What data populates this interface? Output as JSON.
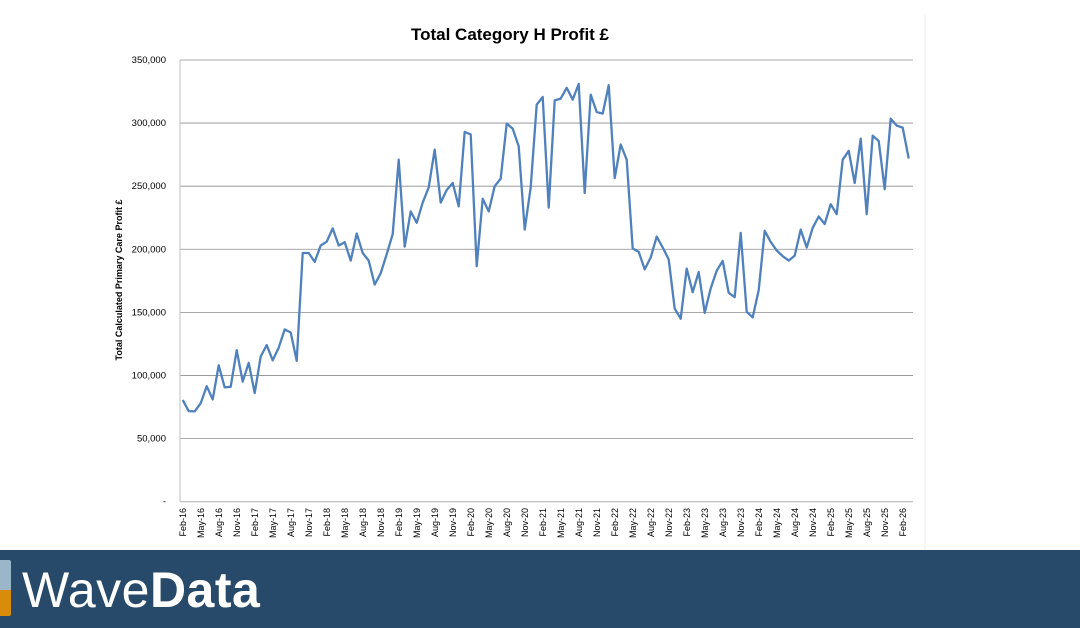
{
  "chart_data": {
    "type": "line",
    "title": "Total Category H Profit £",
    "ylabel": "Total Calculated Primary Care Profit £",
    "xlabel": "",
    "ylim": [
      0,
      350000
    ],
    "y_ticks": [
      0,
      50000,
      100000,
      150000,
      200000,
      250000,
      300000,
      350000
    ],
    "y_tick_labels": [
      "-",
      "50,000",
      "100,000",
      "150,000",
      "200,000",
      "250,000",
      "300,000",
      "350,000"
    ],
    "grid": "horizontal",
    "legend": "none",
    "line_color": "#4f81bd",
    "x_tick_every_months": 3,
    "x_tick_labels": [
      "Feb-16",
      "May-16",
      "Aug-16",
      "Nov-16",
      "Feb-17",
      "May-17",
      "Aug-17",
      "Nov-17",
      "Feb-18",
      "May-18",
      "Aug-18",
      "Nov-18",
      "Feb-19",
      "May-19",
      "Aug-19",
      "Nov-19",
      "Feb-20",
      "May-20",
      "Aug-20",
      "Nov-20",
      "Feb-21",
      "May-21",
      "Aug-21",
      "Nov-21",
      "Feb-22",
      "May-22",
      "Aug-22",
      "Nov-22",
      "Feb-23",
      "May-23",
      "Aug-23",
      "Nov-23",
      "Feb-24",
      "May-24",
      "Aug-24",
      "Nov-24",
      "Feb-25",
      "May-25",
      "Aug-25",
      "Nov-25",
      "Feb-26"
    ],
    "values": [
      80500,
      71700,
      71500,
      78000,
      91500,
      81000,
      108000,
      90500,
      91000,
      120000,
      95000,
      110000,
      86000,
      115000,
      124000,
      112000,
      122000,
      136500,
      134000,
      111600,
      197000,
      197000,
      190000,
      203000,
      206000,
      216500,
      203000,
      205600,
      191000,
      212500,
      197000,
      191000,
      172000,
      181000,
      196000,
      212000,
      271000,
      202000,
      230000,
      221000,
      237000,
      249000,
      279000,
      237000,
      247000,
      252500,
      234000,
      293000,
      291000,
      186600,
      240000,
      230000,
      250000,
      256000,
      299600,
      295600,
      281600,
      215600,
      249000,
      314600,
      320700,
      233000,
      318000,
      319400,
      328000,
      318600,
      331000,
      244700,
      322600,
      308800,
      307500,
      330000,
      256500,
      283000,
      271000,
      200600,
      198000,
      184000,
      193500,
      210000,
      201400,
      192000,
      153000,
      145000,
      184700,
      166000,
      182000,
      149600,
      169000,
      183000,
      190800,
      165500,
      162000,
      213000,
      150400,
      146000,
      167600,
      214600,
      205800,
      199000,
      194500,
      191000,
      195000,
      215600,
      201400,
      217000,
      226000,
      220000,
      235700,
      227800,
      271000,
      278000,
      252500,
      287700,
      227800,
      290000,
      285800,
      247600,
      303500,
      298000,
      296400,
      271900
    ]
  },
  "branding": {
    "logo_text": "WaveData",
    "logo_light": "Wave",
    "logo_bold": "Data",
    "banner_color": "#284a6a"
  }
}
